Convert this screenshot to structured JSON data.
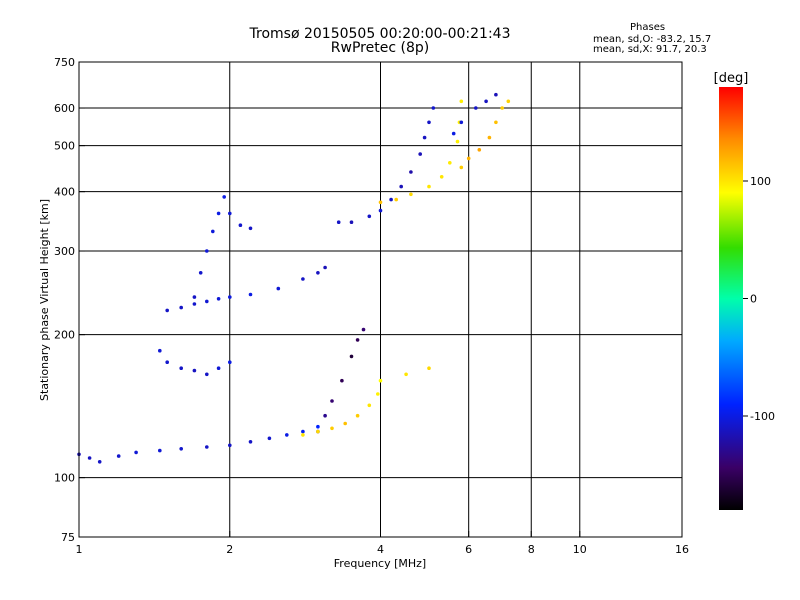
{
  "header": {
    "title": "Tromsø 20150505 00:20:00-00:21:43",
    "subtitle": "RwPretec (8p)",
    "stats_title": "Phases",
    "stats_o": "mean, sd,O: -83.2, 15.7",
    "stats_x": "mean, sd,X:  91.7, 20.3"
  },
  "chart_data": {
    "type": "scatter",
    "xlabel": "Frequency [MHz]",
    "ylabel": "Stationary phase Virtual Height [km]",
    "xscale": "log",
    "yscale": "log",
    "xlim": [
      1,
      16
    ],
    "ylim": [
      75,
      750
    ],
    "xticks": [
      1,
      2,
      4,
      6,
      8,
      10,
      16
    ],
    "xtick_labels": [
      "1",
      "2",
      "4",
      "6",
      "8",
      "10",
      "16"
    ],
    "yticks": [
      75,
      100,
      200,
      300,
      400,
      500,
      600,
      750
    ],
    "ytick_labels": [
      "75",
      "100",
      "200",
      "300",
      "400",
      "500",
      "600",
      "750"
    ],
    "vgrid": [
      1,
      2,
      4,
      6,
      8,
      10
    ],
    "hgrid": [
      100,
      200,
      300,
      400,
      500,
      600
    ],
    "grid": true,
    "colorbar": {
      "label": "[deg]",
      "range": [
        -180,
        180
      ],
      "ticks": [
        100,
        0,
        -100
      ],
      "tick_labels": [
        "100",
        "0",
        "-100"
      ]
    },
    "series": [
      {
        "points": [
          [
            1.0,
            112,
            -115
          ],
          [
            1.05,
            110,
            -112
          ],
          [
            1.1,
            108,
            -110
          ],
          [
            1.2,
            111,
            -108
          ],
          [
            1.3,
            113,
            -105
          ],
          [
            1.45,
            114,
            -105
          ],
          [
            1.6,
            115,
            -108
          ],
          [
            1.8,
            116,
            -110
          ],
          [
            2.0,
            117,
            -110
          ],
          [
            2.2,
            119,
            -110
          ],
          [
            2.4,
            121,
            -108
          ],
          [
            2.6,
            123,
            -100
          ],
          [
            2.8,
            125,
            -95
          ],
          [
            3.0,
            128,
            -90
          ]
        ]
      },
      {
        "points": [
          [
            3.0,
            125,
            -120
          ],
          [
            3.1,
            135,
            -130
          ],
          [
            3.2,
            145,
            -140
          ],
          [
            3.35,
            160,
            -150
          ],
          [
            3.5,
            180,
            -160
          ],
          [
            3.6,
            195,
            -150
          ],
          [
            3.7,
            205,
            -140
          ]
        ]
      },
      {
        "points": [
          [
            2.8,
            123,
            100
          ],
          [
            3.0,
            125,
            105
          ],
          [
            3.2,
            127,
            110
          ],
          [
            3.4,
            130,
            115
          ],
          [
            3.6,
            135,
            110
          ],
          [
            3.8,
            142,
            100
          ],
          [
            3.95,
            150,
            95
          ],
          [
            4.0,
            160,
            90
          ],
          [
            4.5,
            165,
            100
          ],
          [
            5.0,
            170,
            105
          ]
        ]
      },
      {
        "points": [
          [
            1.45,
            185,
            -105
          ],
          [
            1.5,
            175,
            -108
          ],
          [
            1.6,
            170,
            -110
          ],
          [
            1.7,
            168,
            -112
          ],
          [
            1.8,
            165,
            -110
          ],
          [
            1.9,
            170,
            -105
          ],
          [
            2.0,
            175,
            -100
          ]
        ]
      },
      {
        "points": [
          [
            1.5,
            225,
            -110
          ],
          [
            1.6,
            228,
            -110
          ],
          [
            1.7,
            232,
            -108
          ],
          [
            1.8,
            235,
            -106
          ],
          [
            1.9,
            238,
            -104
          ],
          [
            2.0,
            240,
            -102
          ],
          [
            2.2,
            243,
            -100
          ],
          [
            2.5,
            250,
            -105
          ],
          [
            2.8,
            262,
            -110
          ],
          [
            3.0,
            270,
            -112
          ],
          [
            3.1,
            277,
            -115
          ]
        ]
      },
      {
        "points": [
          [
            1.7,
            240,
            -110
          ],
          [
            1.75,
            270,
            -108
          ],
          [
            1.8,
            300,
            -105
          ],
          [
            1.85,
            330,
            -103
          ],
          [
            1.9,
            360,
            -100
          ],
          [
            1.95,
            390,
            -100
          ],
          [
            2.0,
            360,
            -105
          ],
          [
            2.1,
            340,
            -108
          ],
          [
            2.2,
            335,
            -110
          ]
        ]
      },
      {
        "points": [
          [
            3.3,
            345,
            -110
          ],
          [
            3.5,
            345,
            -115
          ],
          [
            3.8,
            355,
            -110
          ],
          [
            4.0,
            365,
            -105
          ],
          [
            4.2,
            385,
            -110
          ],
          [
            4.4,
            410,
            -115
          ],
          [
            4.6,
            440,
            -120
          ],
          [
            4.8,
            480,
            -115
          ],
          [
            4.9,
            520,
            -112
          ],
          [
            5.0,
            560,
            -110
          ],
          [
            5.1,
            600,
            -108
          ]
        ]
      },
      {
        "points": [
          [
            4.0,
            380,
            115
          ],
          [
            4.3,
            385,
            110
          ],
          [
            4.6,
            395,
            105
          ],
          [
            5.0,
            410,
            100
          ],
          [
            5.3,
            430,
            100
          ],
          [
            5.5,
            460,
            98
          ],
          [
            5.7,
            510,
            95
          ],
          [
            5.75,
            560,
            95
          ],
          [
            5.8,
            620,
            96
          ]
        ]
      },
      {
        "points": [
          [
            5.8,
            450,
            110
          ],
          [
            6.0,
            470,
            120
          ],
          [
            6.3,
            490,
            125
          ],
          [
            6.6,
            520,
            120
          ],
          [
            6.8,
            560,
            115
          ],
          [
            7.0,
            600,
            110
          ],
          [
            7.2,
            620,
            108
          ]
        ]
      },
      {
        "points": [
          [
            5.6,
            530,
            -100
          ],
          [
            5.8,
            560,
            -105
          ],
          [
            6.2,
            600,
            -110
          ],
          [
            6.5,
            620,
            -112
          ],
          [
            6.8,
            640,
            -115
          ]
        ]
      }
    ]
  }
}
